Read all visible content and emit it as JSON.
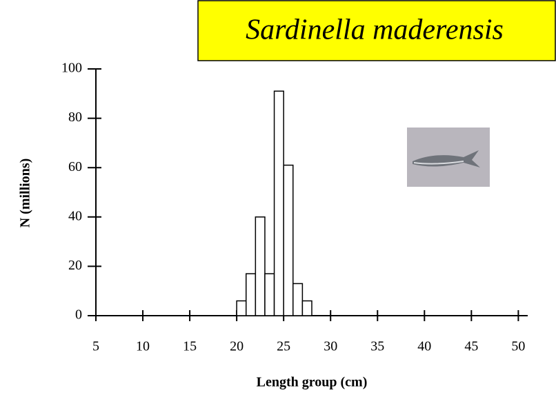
{
  "chart_data": {
    "type": "histogram",
    "title": "Sardinella maderensis",
    "xlabel": "Length group (cm)",
    "ylabel": "N (millions)",
    "bins": [
      20,
      21,
      22,
      23,
      24,
      25,
      26,
      27,
      28
    ],
    "values": [
      6,
      17,
      40,
      17,
      91,
      61,
      13,
      6
    ],
    "color": "#ffffff",
    "xlim": [
      5,
      51
    ],
    "xticks": [
      5,
      10,
      15,
      20,
      25,
      30,
      35,
      40,
      45,
      50
    ],
    "ylim": [
      0,
      100
    ],
    "yticks": [
      0,
      20,
      40,
      60,
      80,
      100
    ]
  }
}
